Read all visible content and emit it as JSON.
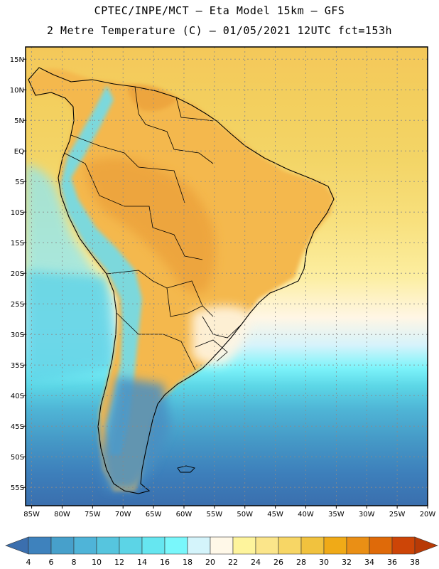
{
  "header": {
    "line1": "CPTEC/INPE/MCT –  Eta Model 15km – GFS",
    "line2": "2 Metre Temperature (C) – 01/05/2021 12UTC fct=153h"
  },
  "map": {
    "lat_ticks": [
      "15N",
      "10N",
      "5N",
      "EQ",
      "5S",
      "10S",
      "15S",
      "20S",
      "25S",
      "30S",
      "35S",
      "40S",
      "45S",
      "50S",
      "55S"
    ],
    "lon_ticks": [
      "85W",
      "80W",
      "75W",
      "70W",
      "65W",
      "60W",
      "55W",
      "50W",
      "45W",
      "40W",
      "35W",
      "30W",
      "25W",
      "20W"
    ],
    "lon_range": [
      -86,
      -20
    ],
    "lat_range": [
      17,
      -58
    ]
  },
  "colorbar": {
    "labels": [
      "4",
      "6",
      "8",
      "10",
      "12",
      "14",
      "16",
      "18",
      "20",
      "22",
      "24",
      "26",
      "28",
      "30",
      "32",
      "34",
      "36",
      "38"
    ],
    "colors": [
      "#3b6fae",
      "#3e82bd",
      "#47a0cb",
      "#4fb4d8",
      "#56c5de",
      "#5cd4e6",
      "#66e6f0",
      "#79f7fb",
      "#d4f4fb",
      "#fff8e8",
      "#fef49c",
      "#fbe58a",
      "#f7d665",
      "#f1c23e",
      "#f0aa17",
      "#ea8f15",
      "#df6a09",
      "#cd4507",
      "#b83a06"
    ]
  }
}
